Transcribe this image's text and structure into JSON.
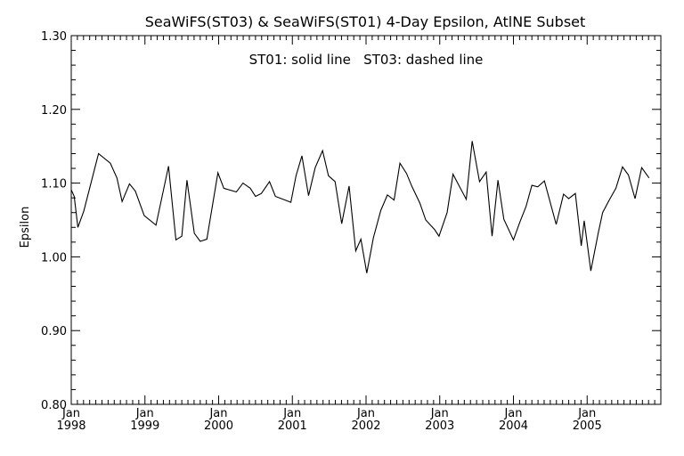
{
  "chart_data": {
    "type": "line",
    "title": "SeaWiFS(ST03) & SeaWiFS(ST01) 4-Day Epsilon, AtlNE Subset",
    "annotation": "ST01: solid line   ST03: dashed line",
    "xlabel": "",
    "ylabel": "Epsilon",
    "xlim": [
      1998.0,
      2006.0
    ],
    "ylim": [
      0.8,
      1.3
    ],
    "y_ticks": [
      "0.80",
      "0.90",
      "1.00",
      "1.10",
      "1.20",
      "1.30"
    ],
    "x_ticks": [
      {
        "month": "Jan",
        "year": "1998",
        "value": 1998
      },
      {
        "month": "Jan",
        "year": "1999",
        "value": 1999
      },
      {
        "month": "Jan",
        "year": "2000",
        "value": 2000
      },
      {
        "month": "Jan",
        "year": "2001",
        "value": 2001
      },
      {
        "month": "Jan",
        "year": "2002",
        "value": 2002
      },
      {
        "month": "Jan",
        "year": "2003",
        "value": 2003
      },
      {
        "month": "Jan",
        "year": "2004",
        "value": 2004
      },
      {
        "month": "Jan",
        "year": "2005",
        "value": 2005
      }
    ],
    "grid": false,
    "series": [
      {
        "name": "ST01",
        "style": "solid",
        "color": "#000000",
        "points": [
          [
            1998.0,
            1.091
          ],
          [
            1998.04,
            1.082
          ],
          [
            1998.09,
            1.04
          ],
          [
            1998.17,
            1.062
          ],
          [
            1998.37,
            1.14
          ],
          [
            1998.53,
            1.127
          ],
          [
            1998.62,
            1.107
          ],
          [
            1998.69,
            1.075
          ],
          [
            1998.79,
            1.099
          ],
          [
            1998.87,
            1.089
          ],
          [
            1998.99,
            1.056
          ],
          [
            1999.15,
            1.043
          ],
          [
            1999.32,
            1.123
          ],
          [
            1999.42,
            1.023
          ],
          [
            1999.5,
            1.028
          ],
          [
            1999.57,
            1.104
          ],
          [
            1999.67,
            1.032
          ],
          [
            1999.75,
            1.021
          ],
          [
            1999.84,
            1.024
          ],
          [
            1999.99,
            1.114
          ],
          [
            2000.07,
            1.093
          ],
          [
            2000.24,
            1.088
          ],
          [
            2000.33,
            1.1
          ],
          [
            2000.43,
            1.093
          ],
          [
            2000.5,
            1.082
          ],
          [
            2000.58,
            1.086
          ],
          [
            2000.69,
            1.102
          ],
          [
            2000.77,
            1.082
          ],
          [
            2000.98,
            1.074
          ],
          [
            2001.05,
            1.11
          ],
          [
            2001.13,
            1.137
          ],
          [
            2001.22,
            1.083
          ],
          [
            2001.31,
            1.121
          ],
          [
            2001.41,
            1.144
          ],
          [
            2001.49,
            1.11
          ],
          [
            2001.58,
            1.102
          ],
          [
            2001.67,
            1.045
          ],
          [
            2001.77,
            1.096
          ],
          [
            2001.86,
            1.008
          ],
          [
            2001.93,
            1.024
          ],
          [
            2002.01,
            0.978
          ],
          [
            2002.1,
            1.026
          ],
          [
            2002.2,
            1.063
          ],
          [
            2002.29,
            1.084
          ],
          [
            2002.38,
            1.077
          ],
          [
            2002.46,
            1.127
          ],
          [
            2002.55,
            1.113
          ],
          [
            2002.62,
            1.096
          ],
          [
            2002.73,
            1.073
          ],
          [
            2002.81,
            1.05
          ],
          [
            2002.93,
            1.037
          ],
          [
            2002.99,
            1.028
          ],
          [
            2003.1,
            1.06
          ],
          [
            2003.18,
            1.112
          ],
          [
            2003.27,
            1.095
          ],
          [
            2003.36,
            1.078
          ],
          [
            2003.44,
            1.157
          ],
          [
            2003.54,
            1.102
          ],
          [
            2003.63,
            1.115
          ],
          [
            2003.71,
            1.028
          ],
          [
            2003.79,
            1.104
          ],
          [
            2003.87,
            1.051
          ],
          [
            2004.0,
            1.023
          ],
          [
            2004.09,
            1.048
          ],
          [
            2004.17,
            1.068
          ],
          [
            2004.25,
            1.097
          ],
          [
            2004.33,
            1.095
          ],
          [
            2004.42,
            1.103
          ],
          [
            2004.58,
            1.044
          ],
          [
            2004.68,
            1.085
          ],
          [
            2004.75,
            1.079
          ],
          [
            2004.84,
            1.086
          ],
          [
            2004.92,
            1.015
          ],
          [
            2004.96,
            1.049
          ],
          [
            2005.05,
            0.981
          ],
          [
            2005.15,
            1.032
          ],
          [
            2005.21,
            1.06
          ],
          [
            2005.3,
            1.077
          ],
          [
            2005.39,
            1.093
          ],
          [
            2005.48,
            1.122
          ],
          [
            2005.56,
            1.111
          ],
          [
            2005.65,
            1.079
          ],
          [
            2005.74,
            1.121
          ],
          [
            2005.84,
            1.107
          ]
        ]
      }
    ]
  }
}
